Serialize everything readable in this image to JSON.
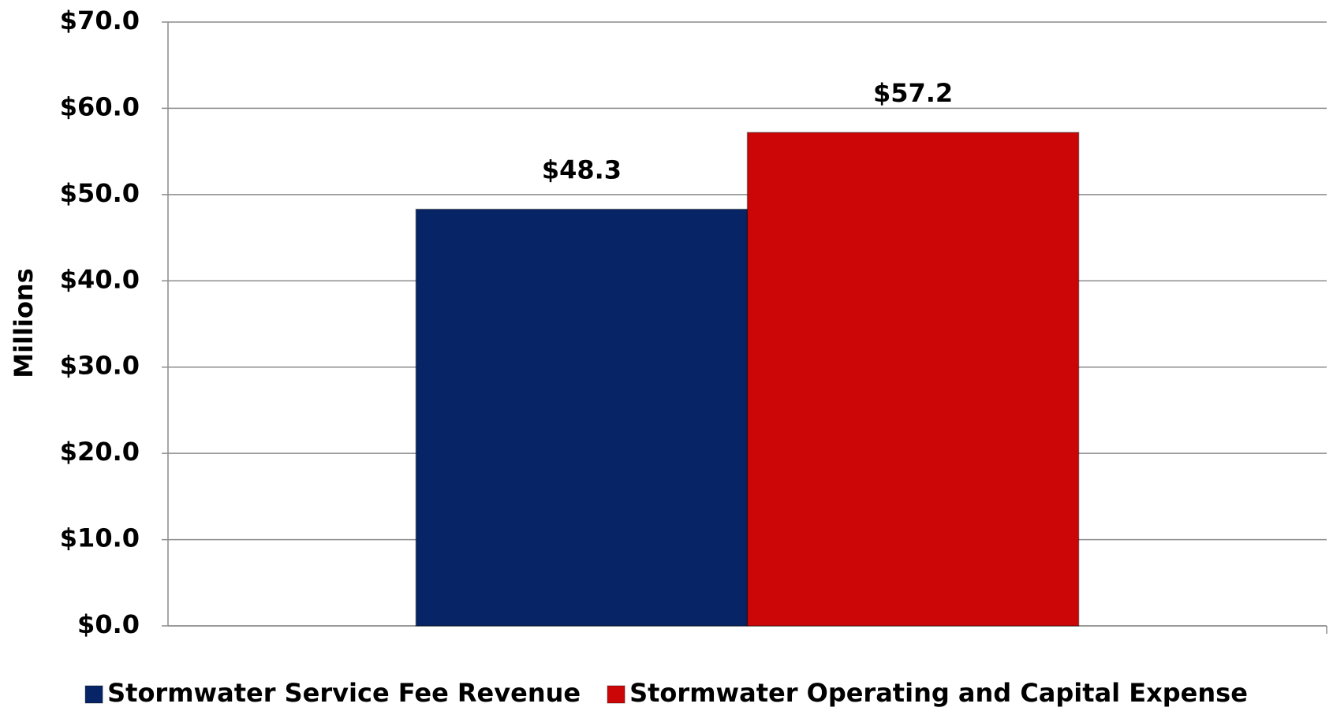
{
  "chart_data": {
    "type": "bar",
    "y_label": "Millions",
    "categories": [
      null
    ],
    "series": [
      {
        "name": "Stormwater Service Fee Revenue",
        "color": "#062466",
        "values": [
          48.3
        ],
        "value_labels": [
          "$48.3"
        ]
      },
      {
        "name": "Stormwater Operating and Capital Expense",
        "color": "#cc0606",
        "values": [
          57.2
        ],
        "value_labels": [
          "$57.2"
        ]
      }
    ],
    "ylim": [
      0,
      70
    ],
    "yticks": [
      {
        "value": 0,
        "label": "$0.0"
      },
      {
        "value": 10,
        "label": "$10.0"
      },
      {
        "value": 20,
        "label": "$20.0"
      },
      {
        "value": 30,
        "label": "$30.0"
      },
      {
        "value": 40,
        "label": "$40.0"
      },
      {
        "value": 50,
        "label": "$50.0"
      },
      {
        "value": 60,
        "label": "$60.0"
      },
      {
        "value": 70,
        "label": "$70.0"
      }
    ],
    "grid": true,
    "legend": "bottom"
  }
}
